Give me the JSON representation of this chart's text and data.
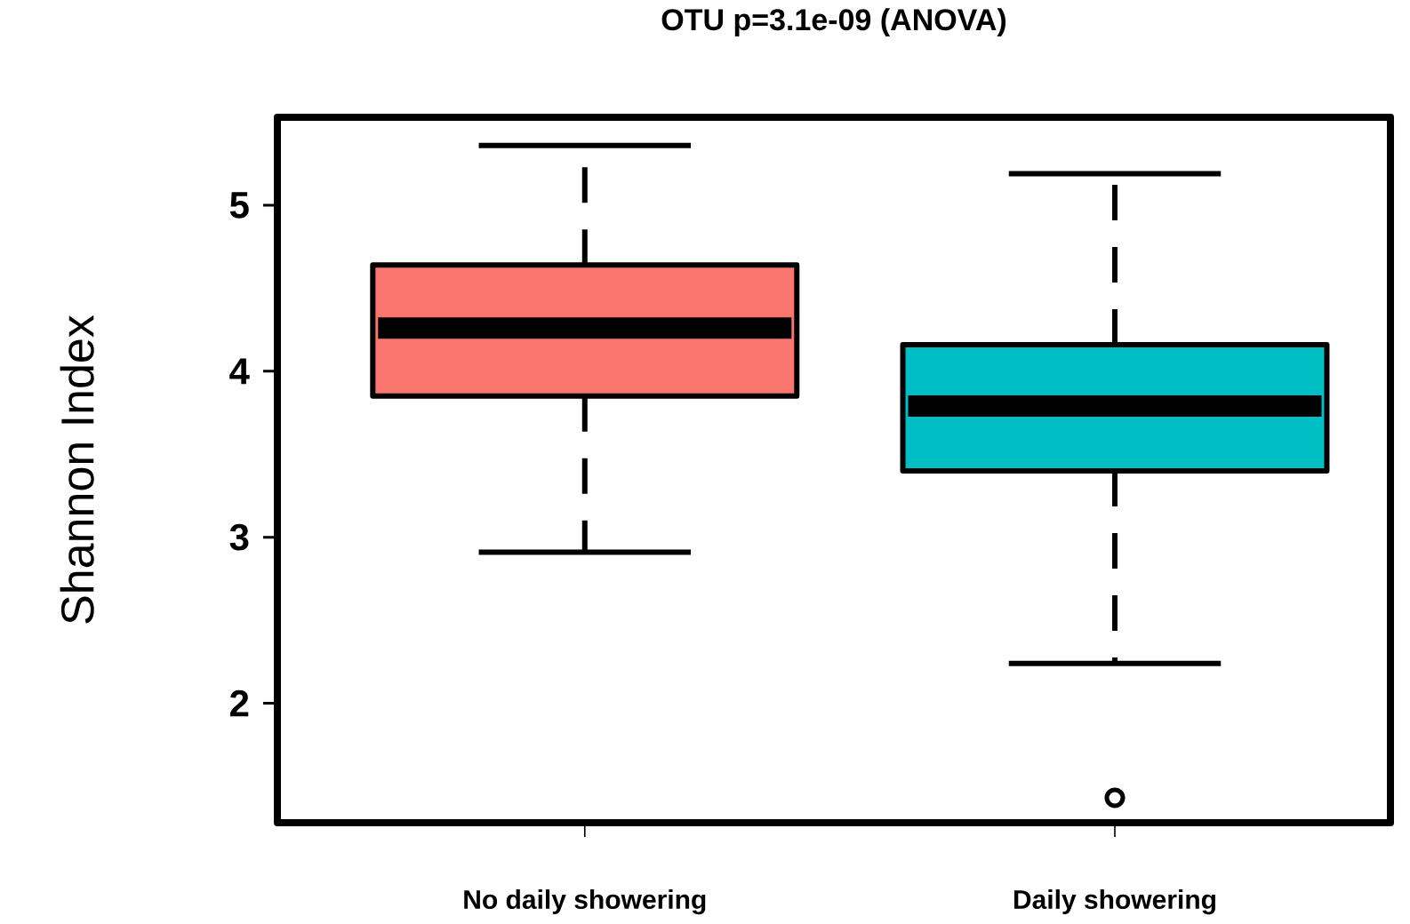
{
  "chart_data": {
    "type": "box",
    "title": "OTU p=3.1e-09 (ANOVA)",
    "ylabel": "Shannon Index",
    "categories": [
      "No daily showering",
      "Daily showering"
    ],
    "colors": [
      "#f8766d",
      "#00bfc4"
    ],
    "boxes": [
      {
        "low": 2.91,
        "q1": 3.85,
        "median": 4.26,
        "q3": 4.64,
        "high": 5.36
      },
      {
        "low": 2.24,
        "q1": 3.4,
        "median": 3.79,
        "q3": 4.16,
        "high": 5.19,
        "outliers": [
          1.43
        ]
      }
    ],
    "ylim": [
      1.28,
      5.53
    ],
    "yticks": [
      2,
      3,
      4,
      5
    ]
  }
}
